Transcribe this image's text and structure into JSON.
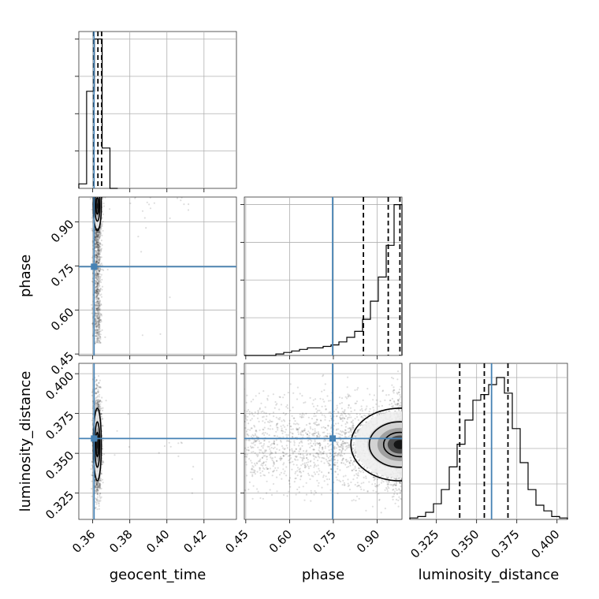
{
  "chart_data": {
    "type": "corner",
    "parameters": [
      "geocent_time",
      "phase",
      "luminosity_distance"
    ],
    "axis_labels": {
      "x": [
        "geocent_time",
        "phase",
        "luminosity_distance"
      ],
      "y": [
        "phase",
        "luminosity_distance"
      ]
    },
    "ranges": {
      "geocent_time": [
        0.3525,
        0.4375
      ],
      "phase": [
        0.445,
        0.985
      ],
      "luminosity_distance": [
        0.3085,
        0.4065
      ]
    },
    "ticks": {
      "geocent_time": [
        "0.36",
        "0.38",
        "0.40",
        "0.42"
      ],
      "phase": [
        "0.45",
        "0.60",
        "0.75",
        "0.90"
      ],
      "luminosity_distance": [
        "0.325",
        "0.350",
        "0.375",
        "0.400"
      ]
    },
    "truths": {
      "geocent_time": 0.3607,
      "phase": 0.7475,
      "luminosity_distance": 0.3593
    },
    "truth_color": "#4682b4",
    "quantiles": {
      "geocent_time": [
        0.3605,
        0.3628,
        0.3648
      ],
      "phase": [
        0.853,
        0.938,
        0.978
      ],
      "luminosity_distance": [
        0.3395,
        0.3548,
        0.3695
      ]
    },
    "histograms": {
      "geocent_time": {
        "edges": [
          0.3525,
          0.3567,
          0.3609,
          0.3651,
          0.3693,
          0.3735
        ],
        "counts": [
          0.03,
          0.65,
          1.0,
          0.27,
          0.0
        ]
      },
      "phase": {
        "edges": [
          0.445,
          0.472,
          0.499,
          0.526,
          0.553,
          0.58,
          0.607,
          0.634,
          0.661,
          0.688,
          0.715,
          0.742,
          0.769,
          0.796,
          0.823,
          0.85,
          0.877,
          0.904,
          0.931,
          0.958,
          0.985
        ],
        "counts": [
          0.0,
          0.0,
          0.0,
          0.0,
          0.01,
          0.02,
          0.03,
          0.04,
          0.05,
          0.05,
          0.06,
          0.07,
          0.09,
          0.12,
          0.16,
          0.24,
          0.36,
          0.52,
          0.73,
          1.0
        ]
      },
      "luminosity_distance": {
        "edges": [
          0.3085,
          0.3134,
          0.3183,
          0.3232,
          0.3281,
          0.333,
          0.3379,
          0.3428,
          0.3477,
          0.3526,
          0.3575,
          0.3624,
          0.3673,
          0.3722,
          0.3771,
          0.382,
          0.3869,
          0.3918,
          0.3967,
          0.4016,
          0.4065
        ],
        "counts": [
          0.01,
          0.02,
          0.05,
          0.11,
          0.21,
          0.37,
          0.53,
          0.7,
          0.84,
          0.88,
          0.95,
          1.0,
          0.89,
          0.64,
          0.4,
          0.21,
          0.1,
          0.06,
          0.02,
          0.01
        ]
      }
    },
    "grid": true
  }
}
